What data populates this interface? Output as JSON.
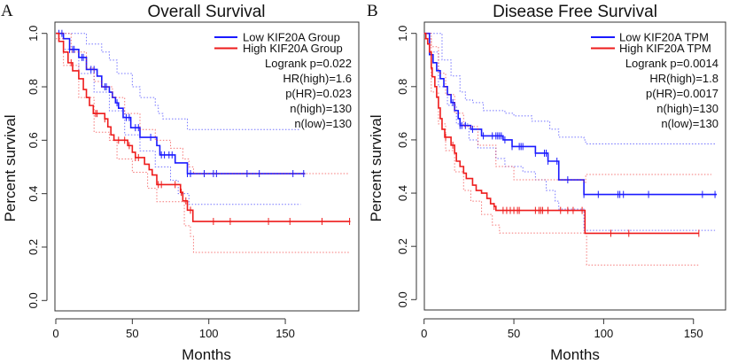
{
  "chart_data": [
    {
      "type": "line",
      "subtype": "kaplan-meier",
      "panel_label": "A",
      "title": "Overall Survival",
      "xlabel": "Months",
      "ylabel": "Percent survival",
      "xlim": [
        0,
        195
      ],
      "ylim": [
        0,
        1
      ],
      "xticks": [
        "0",
        "50",
        "100",
        "150"
      ],
      "yticks": [
        "0.0",
        "0.2",
        "0.4",
        "0.6",
        "0.8",
        "1.0"
      ],
      "grid": false,
      "legend_position": "top-right",
      "stats": [
        "Logrank p=0.022",
        "HR(high)=1.6",
        "p(HR)=0.023",
        "n(high)=130",
        "n(low)=130"
      ],
      "series": [
        {
          "name": "Low KIF20A Group",
          "color": "#1a1aff",
          "steps": [
            [
              0,
              1.0
            ],
            [
              5,
              0.98
            ],
            [
              9,
              0.94
            ],
            [
              15,
              0.91
            ],
            [
              20,
              0.865
            ],
            [
              27,
              0.84
            ],
            [
              30,
              0.8
            ],
            [
              35,
              0.78
            ],
            [
              37,
              0.76
            ],
            [
              39,
              0.74
            ],
            [
              41,
              0.72
            ],
            [
              44,
              0.685
            ],
            [
              49,
              0.647
            ],
            [
              55,
              0.611
            ],
            [
              66,
              0.58
            ],
            [
              68,
              0.545
            ],
            [
              78,
              0.515
            ],
            [
              86,
              0.475
            ],
            [
              163,
              0.475
            ]
          ],
          "ci_upper": [
            [
              0,
              1.0
            ],
            [
              10,
              1.0
            ],
            [
              20,
              0.96
            ],
            [
              30,
              0.93
            ],
            [
              35,
              0.9
            ],
            [
              40,
              0.85
            ],
            [
              50,
              0.8
            ],
            [
              55,
              0.76
            ],
            [
              65,
              0.73
            ],
            [
              67,
              0.7
            ],
            [
              70,
              0.68
            ],
            [
              86,
              0.64
            ],
            [
              160,
              0.64
            ]
          ],
          "ci_lower": [
            [
              0,
              1.0
            ],
            [
              5,
              0.94
            ],
            [
              15,
              0.85
            ],
            [
              25,
              0.78
            ],
            [
              35,
              0.71
            ],
            [
              45,
              0.62
            ],
            [
              55,
              0.56
            ],
            [
              65,
              0.5
            ],
            [
              75,
              0.45
            ],
            [
              80,
              0.4
            ],
            [
              87,
              0.36
            ],
            [
              160,
              0.36
            ]
          ],
          "censored": [
            2,
            4,
            9,
            11,
            12,
            17,
            18,
            23,
            25,
            32,
            33,
            40,
            46,
            48,
            52,
            54,
            62,
            69,
            71,
            74,
            76,
            86,
            88,
            97,
            103,
            105,
            125,
            133,
            155,
            162
          ]
        },
        {
          "name": "High KIF20A Group",
          "color": "#ee1c1c",
          "steps": [
            [
              0,
              1.0
            ],
            [
              2,
              0.97
            ],
            [
              5,
              0.93
            ],
            [
              8,
              0.89
            ],
            [
              11,
              0.86
            ],
            [
              15,
              0.83
            ],
            [
              18,
              0.79
            ],
            [
              20,
              0.76
            ],
            [
              22,
              0.73
            ],
            [
              24.5,
              0.7
            ],
            [
              32,
              0.68
            ],
            [
              34,
              0.65
            ],
            [
              36,
              0.62
            ],
            [
              38,
              0.6
            ],
            [
              47,
              0.58
            ],
            [
              50,
              0.555
            ],
            [
              52,
              0.535
            ],
            [
              58,
              0.51
            ],
            [
              61,
              0.49
            ],
            [
              63,
              0.47
            ],
            [
              66,
              0.434
            ],
            [
              81.5,
              0.405
            ],
            [
              83,
              0.373
            ],
            [
              86,
              0.338
            ],
            [
              89.6,
              0.296
            ],
            [
              192.5,
              0.296
            ]
          ],
          "ci_upper": [
            [
              0,
              1.0
            ],
            [
              10,
              0.93
            ],
            [
              20,
              0.87
            ],
            [
              25,
              0.82
            ],
            [
              30,
              0.8
            ],
            [
              37,
              0.76
            ],
            [
              45,
              0.7
            ],
            [
              55,
              0.64
            ],
            [
              65,
              0.6
            ],
            [
              75,
              0.57
            ],
            [
              83,
              0.53
            ],
            [
              87,
              0.5
            ],
            [
              90,
              0.475
            ],
            [
              192,
              0.475
            ]
          ],
          "ci_lower": [
            [
              0,
              0.98
            ],
            [
              5,
              0.88
            ],
            [
              15,
              0.76
            ],
            [
              25,
              0.63
            ],
            [
              35,
              0.6
            ],
            [
              40,
              0.53
            ],
            [
              50,
              0.48
            ],
            [
              60,
              0.42
            ],
            [
              66,
              0.37
            ],
            [
              80,
              0.37
            ],
            [
              84,
              0.28
            ],
            [
              88,
              0.24
            ],
            [
              90,
              0.18
            ],
            [
              192,
              0.18
            ]
          ],
          "censored": [
            10,
            26,
            27,
            32,
            41,
            45,
            48,
            52,
            54,
            67,
            69,
            78,
            82,
            85,
            88,
            103,
            114,
            139,
            153,
            174,
            192
          ]
        }
      ]
    },
    {
      "type": "line",
      "subtype": "kaplan-meier",
      "panel_label": "B",
      "title": "Disease Free Survival",
      "xlabel": "Months",
      "ylabel": "Percent survival",
      "xlim": [
        0,
        168
      ],
      "ylim": [
        0,
        1
      ],
      "xticks": [
        "0",
        "50",
        "100",
        "150"
      ],
      "yticks": [
        "0.0",
        "0.2",
        "0.4",
        "0.6",
        "0.8",
        "1.0"
      ],
      "grid": false,
      "legend_position": "top-right",
      "stats": [
        "Logrank p=0.0014",
        "HR(high)=1.8",
        "p(HR)=0.0017",
        "n(high)=130",
        "n(low)=130"
      ],
      "series": [
        {
          "name": "Low KIF20A TPM",
          "color": "#1a1aff",
          "steps": [
            [
              0,
              1.0
            ],
            [
              3,
              0.92
            ],
            [
              5,
              0.89
            ],
            [
              7,
              0.86
            ],
            [
              9,
              0.83
            ],
            [
              11,
              0.8
            ],
            [
              13,
              0.77
            ],
            [
              15,
              0.74
            ],
            [
              17,
              0.71
            ],
            [
              19,
              0.68
            ],
            [
              20,
              0.654
            ],
            [
              26,
              0.64
            ],
            [
              32,
              0.615
            ],
            [
              44,
              0.6
            ],
            [
              49,
              0.575
            ],
            [
              62,
              0.55
            ],
            [
              69,
              0.52
            ],
            [
              75,
              0.45
            ],
            [
              89,
              0.395
            ],
            [
              163,
              0.395
            ]
          ],
          "ci_upper": [
            [
              0,
              1.0
            ],
            [
              5,
              1.0
            ],
            [
              10,
              0.9
            ],
            [
              15,
              0.84
            ],
            [
              20,
              0.78
            ],
            [
              23,
              0.75
            ],
            [
              27,
              0.74
            ],
            [
              33,
              0.71
            ],
            [
              45,
              0.7
            ],
            [
              50,
              0.69
            ],
            [
              60,
              0.67
            ],
            [
              70,
              0.64
            ],
            [
              75,
              0.61
            ],
            [
              89,
              0.6
            ],
            [
              90,
              0.585
            ],
            [
              162,
              0.585
            ]
          ],
          "ci_lower": [
            [
              0,
              1.0
            ],
            [
              3,
              0.93
            ],
            [
              8,
              0.8
            ],
            [
              13,
              0.73
            ],
            [
              18,
              0.66
            ],
            [
              25,
              0.6
            ],
            [
              30,
              0.57
            ],
            [
              40,
              0.53
            ],
            [
              45,
              0.5
            ],
            [
              55,
              0.48
            ],
            [
              62,
              0.45
            ],
            [
              68,
              0.41
            ],
            [
              73,
              0.37
            ],
            [
              75,
              0.34
            ],
            [
              89,
              0.26
            ],
            [
              162,
              0.26
            ]
          ],
          "censored": [
            16,
            20,
            21,
            23,
            27,
            33,
            38,
            40,
            41,
            42,
            43,
            45,
            49,
            53,
            54,
            55,
            62,
            67,
            68,
            69,
            74,
            80,
            89,
            97,
            108,
            109,
            111,
            125,
            155,
            162
          ]
        },
        {
          "name": "High KIF20A TPM",
          "color": "#ee1c1c",
          "steps": [
            [
              0,
              1.0
            ],
            [
              1,
              0.98
            ],
            [
              2,
              0.96
            ],
            [
              3,
              0.93
            ],
            [
              4,
              0.87
            ],
            [
              4.5,
              0.837
            ],
            [
              6,
              0.8
            ],
            [
              7,
              0.76
            ],
            [
              8,
              0.72
            ],
            [
              9,
              0.68
            ],
            [
              10,
              0.64
            ],
            [
              11.5,
              0.61
            ],
            [
              15,
              0.58
            ],
            [
              17,
              0.55
            ],
            [
              18,
              0.52
            ],
            [
              20,
              0.5
            ],
            [
              22,
              0.475
            ],
            [
              23.5,
              0.455
            ],
            [
              27,
              0.43
            ],
            [
              29,
              0.41
            ],
            [
              32,
              0.4
            ],
            [
              35,
              0.38
            ],
            [
              37,
              0.36
            ],
            [
              39,
              0.35
            ],
            [
              40,
              0.335
            ],
            [
              89.6,
              0.249
            ],
            [
              153,
              0.249
            ]
          ],
          "ci_upper": [
            [
              0,
              1.0
            ],
            [
              4,
              0.95
            ],
            [
              8,
              0.85
            ],
            [
              12,
              0.77
            ],
            [
              17,
              0.7
            ],
            [
              22,
              0.65
            ],
            [
              30,
              0.58
            ],
            [
              40,
              0.5
            ],
            [
              50,
              0.45
            ],
            [
              75,
              0.45
            ],
            [
              89,
              0.44
            ],
            [
              90,
              0.47
            ],
            [
              160,
              0.47
            ]
          ],
          "ci_lower": [
            [
              0,
              0.98
            ],
            [
              4,
              0.78
            ],
            [
              8,
              0.66
            ],
            [
              12,
              0.56
            ],
            [
              17,
              0.48
            ],
            [
              22,
              0.41
            ],
            [
              26,
              0.37
            ],
            [
              32,
              0.32
            ],
            [
              38,
              0.28
            ],
            [
              42,
              0.25
            ],
            [
              90,
              0.25
            ],
            [
              90.5,
              0.13
            ],
            [
              153,
              0.13
            ]
          ],
          "censored": [
            12,
            16,
            39,
            44,
            46,
            48,
            50,
            52,
            53,
            62,
            64,
            65,
            66,
            69,
            76,
            80,
            83,
            88,
            104,
            114,
            153
          ]
        }
      ]
    }
  ]
}
